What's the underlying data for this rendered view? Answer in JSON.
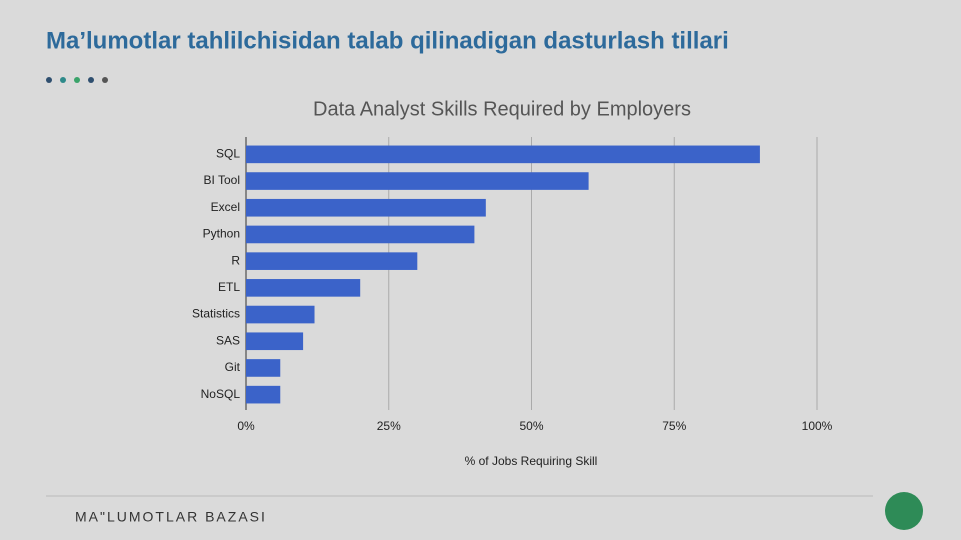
{
  "slide": {
    "title": "Ma’lumotlar tahlilchisidan talab qilinadigan dasturlash tillari",
    "footer": "MA\"LUMOTLAR BAZASI"
  },
  "chart_data": {
    "type": "bar",
    "orientation": "horizontal",
    "title": "Data Analyst Skills Required by Employers",
    "x_label": "% of Jobs Requiring Skill",
    "categories": [
      "SQL",
      "BI Tool",
      "Excel",
      "Python",
      "R",
      "ETL",
      "Statistics",
      "SAS",
      "Git",
      "NoSQL"
    ],
    "values": [
      90,
      60,
      42,
      40,
      30,
      20,
      12,
      10,
      6,
      6
    ],
    "color": "#3b63c9",
    "xlim": [
      0,
      100
    ],
    "xticks": [
      {
        "value": 0,
        "label": "0%"
      },
      {
        "value": 25,
        "label": "25%"
      },
      {
        "value": 50,
        "label": "50%"
      },
      {
        "value": 75,
        "label": "75%"
      },
      {
        "value": 100,
        "label": "100%"
      }
    ],
    "grid": true
  }
}
